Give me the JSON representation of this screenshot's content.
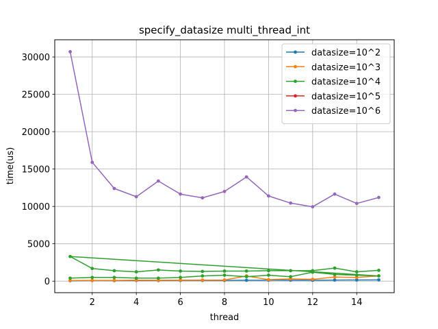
{
  "chart_data": {
    "type": "line",
    "title": "specify_datasize multi_thread_int",
    "xlabel": "thread",
    "ylabel": "time(us)",
    "xlim": [
      0.3,
      15.7
    ],
    "ylim": [
      -1540,
      32300
    ],
    "xticks": [
      2,
      4,
      6,
      8,
      10,
      12,
      14
    ],
    "yticks": [
      0,
      5000,
      10000,
      15000,
      20000,
      25000,
      30000
    ],
    "grid": true,
    "legend_position": "top-right",
    "series": [
      {
        "name": "datasize=10^2",
        "color": "#1f77b4",
        "x": [
          1,
          2,
          3,
          4,
          5,
          6,
          7,
          8,
          9,
          10,
          11,
          12,
          13,
          14,
          15
        ],
        "values": [
          60,
          80,
          70,
          90,
          80,
          100,
          100,
          100,
          120,
          130,
          140,
          120,
          150,
          160,
          170
        ]
      },
      {
        "name": "datasize=10^3",
        "color": "#ff7f0e",
        "x": [
          1,
          2,
          3,
          4,
          5,
          6,
          7,
          8,
          9,
          10,
          11,
          12,
          13,
          14,
          15
        ],
        "values": [
          80,
          100,
          100,
          130,
          120,
          150,
          150,
          160,
          700,
          200,
          300,
          250,
          550,
          500,
          700
        ]
      },
      {
        "name": "datasize=10^4",
        "color": "#2ca02c",
        "x": [
          1,
          2,
          3,
          4,
          5,
          6,
          7,
          8,
          9,
          10,
          11,
          12,
          13,
          14,
          15,
          1,
          2,
          3,
          4,
          5,
          6,
          7,
          8,
          9,
          10,
          11,
          12,
          13,
          14,
          15
        ],
        "values": [
          400,
          500,
          500,
          400,
          400,
          500,
          700,
          800,
          600,
          800,
          600,
          1200,
          900,
          800,
          700,
          3300,
          1700,
          1400,
          1250,
          1500,
          1350,
          1300,
          1350,
          1350,
          1400,
          1400,
          1400,
          1750,
          1250,
          1450
        ]
      },
      {
        "name": "datasize=10^5",
        "color": "#d62728",
        "x": [],
        "values": []
      },
      {
        "name": "datasize=10^6",
        "color": "#9467bd",
        "x": [
          1,
          2,
          3,
          4,
          5,
          6,
          7,
          8,
          9,
          10,
          11,
          12,
          13,
          14,
          15
        ],
        "values": [
          30700,
          15900,
          12400,
          11300,
          13400,
          11650,
          11150,
          12000,
          13950,
          11400,
          10450,
          9950,
          11650,
          10400,
          11200
        ]
      }
    ]
  }
}
